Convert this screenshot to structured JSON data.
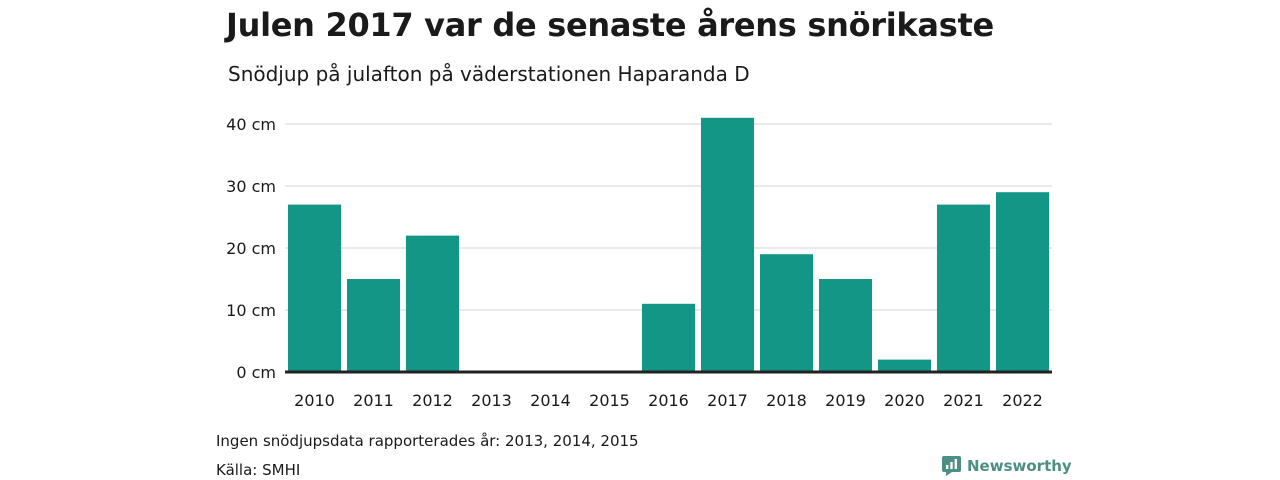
{
  "header": {
    "title": "Julen 2017 var de senaste årens snörikaste",
    "subtitle": "Snödjup på julafton på väderstationen Haparanda D"
  },
  "footer": {
    "note": "Ingen snödjupsdata rapporterades år: 2013, 2014, 2015",
    "source": "Källa: SMHI",
    "brand": "Newsworthy",
    "brand_icon": "newsworthy-logo-icon"
  },
  "colors": {
    "bar": "#149687",
    "grid": "#e3e3e3",
    "baseline": "#222222",
    "brand": "#4d8f84"
  },
  "chart_data": {
    "type": "bar",
    "categories": [
      "2010",
      "2011",
      "2012",
      "2013",
      "2014",
      "2015",
      "2016",
      "2017",
      "2018",
      "2019",
      "2020",
      "2021",
      "2022"
    ],
    "values": [
      27,
      15,
      22,
      null,
      null,
      null,
      11,
      41,
      19,
      15,
      2,
      27,
      29
    ],
    "ylim": [
      0,
      40
    ],
    "yticks": [
      0,
      10,
      20,
      30,
      40
    ],
    "ytick_labels": [
      "0 cm",
      "10 cm",
      "20 cm",
      "30 cm",
      "40 cm"
    ],
    "grid": true,
    "legend": "none"
  }
}
